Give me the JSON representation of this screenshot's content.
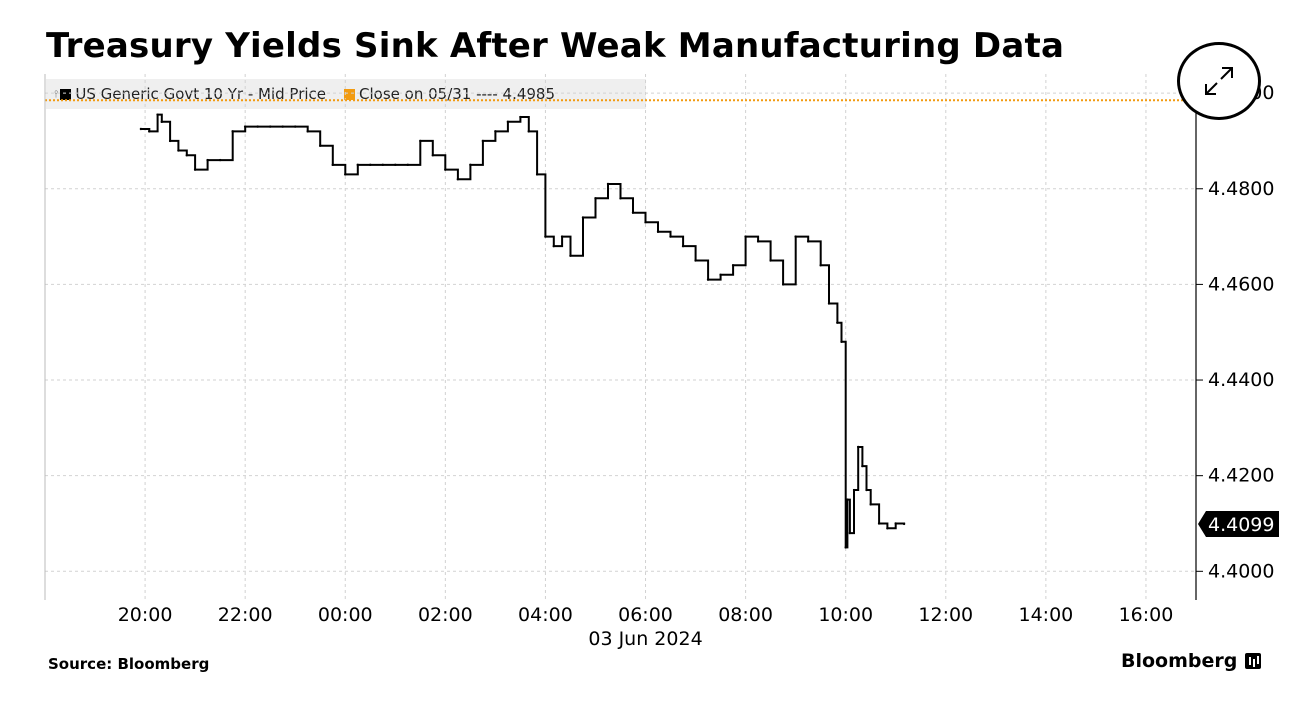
{
  "title": "Treasury Yields Sink After Weak Manufacturing Data",
  "legend": {
    "series_label": "US Generic Govt 10 Yr - Mid Price",
    "series_color": "#000000",
    "close_label": "Close on 05/31 ---- 4.4985",
    "close_color": "#f29b10"
  },
  "expand_icon": "expand-icon",
  "source": "Source: Bloomberg",
  "brand": "Bloomberg",
  "chart_data": {
    "type": "line",
    "title": "Treasury Yields Sink After Weak Manufacturing Data",
    "series": [
      {
        "name": "US Generic Govt 10 Yr - Mid Price",
        "color": "#000000",
        "x": [
          "19:55",
          "20:05",
          "20:15",
          "20:20",
          "20:30",
          "20:40",
          "20:50",
          "21:00",
          "21:15",
          "21:30",
          "21:45",
          "22:00",
          "22:15",
          "22:30",
          "22:45",
          "23:00",
          "23:15",
          "23:30",
          "23:45",
          "00:00",
          "00:15",
          "00:30",
          "00:45",
          "01:00",
          "01:15",
          "01:30",
          "01:45",
          "02:00",
          "02:15",
          "02:30",
          "02:45",
          "03:00",
          "03:15",
          "03:30",
          "03:40",
          "03:50",
          "04:00",
          "04:10",
          "04:20",
          "04:30",
          "04:45",
          "05:00",
          "05:15",
          "05:30",
          "05:45",
          "06:00",
          "06:15",
          "06:30",
          "06:45",
          "07:00",
          "07:15",
          "07:30",
          "07:45",
          "08:00",
          "08:15",
          "08:30",
          "08:45",
          "09:00",
          "09:15",
          "09:30",
          "09:40",
          "09:50",
          "09:55",
          "10:00",
          "10:02",
          "10:05",
          "10:10",
          "10:15",
          "10:20",
          "10:25",
          "10:30",
          "10:40",
          "10:50",
          "11:00",
          "11:10"
        ],
        "values": [
          4.4925,
          4.492,
          4.4955,
          4.494,
          4.49,
          4.488,
          4.487,
          4.484,
          4.486,
          4.486,
          4.492,
          4.493,
          4.493,
          4.493,
          4.493,
          4.493,
          4.492,
          4.489,
          4.485,
          4.483,
          4.485,
          4.485,
          4.485,
          4.485,
          4.485,
          4.49,
          4.487,
          4.484,
          4.482,
          4.485,
          4.49,
          4.492,
          4.494,
          4.495,
          4.492,
          4.483,
          4.47,
          4.468,
          4.47,
          4.466,
          4.474,
          4.478,
          4.481,
          4.478,
          4.475,
          4.473,
          4.471,
          4.47,
          4.468,
          4.465,
          4.461,
          4.462,
          4.464,
          4.47,
          4.469,
          4.465,
          4.46,
          4.47,
          4.469,
          4.464,
          4.456,
          4.452,
          4.448,
          4.405,
          4.415,
          4.408,
          4.417,
          4.426,
          4.422,
          4.417,
          4.414,
          4.41,
          4.409,
          4.41,
          4.4099
        ]
      }
    ],
    "reference_line": {
      "label": "Close on 05/31",
      "value": 4.4985,
      "color": "#f29b10",
      "style": "dotted"
    },
    "last_value_label": "4.4099",
    "x_ticks": [
      "20:00",
      "22:00",
      "00:00",
      "02:00",
      "04:00",
      "06:00",
      "08:00",
      "10:00",
      "12:00",
      "14:00",
      "16:00"
    ],
    "x_domain": [
      "18:00",
      "17:00"
    ],
    "x_date_label": "03 Jun 2024",
    "y_ticks": [
      "4.4000",
      "4.4200",
      "4.4400",
      "4.4600",
      "4.4800",
      "4.5000"
    ],
    "ylim": [
      4.394,
      4.504
    ],
    "yaxis_side": "right",
    "grid": true,
    "xlabel": "",
    "ylabel": ""
  }
}
